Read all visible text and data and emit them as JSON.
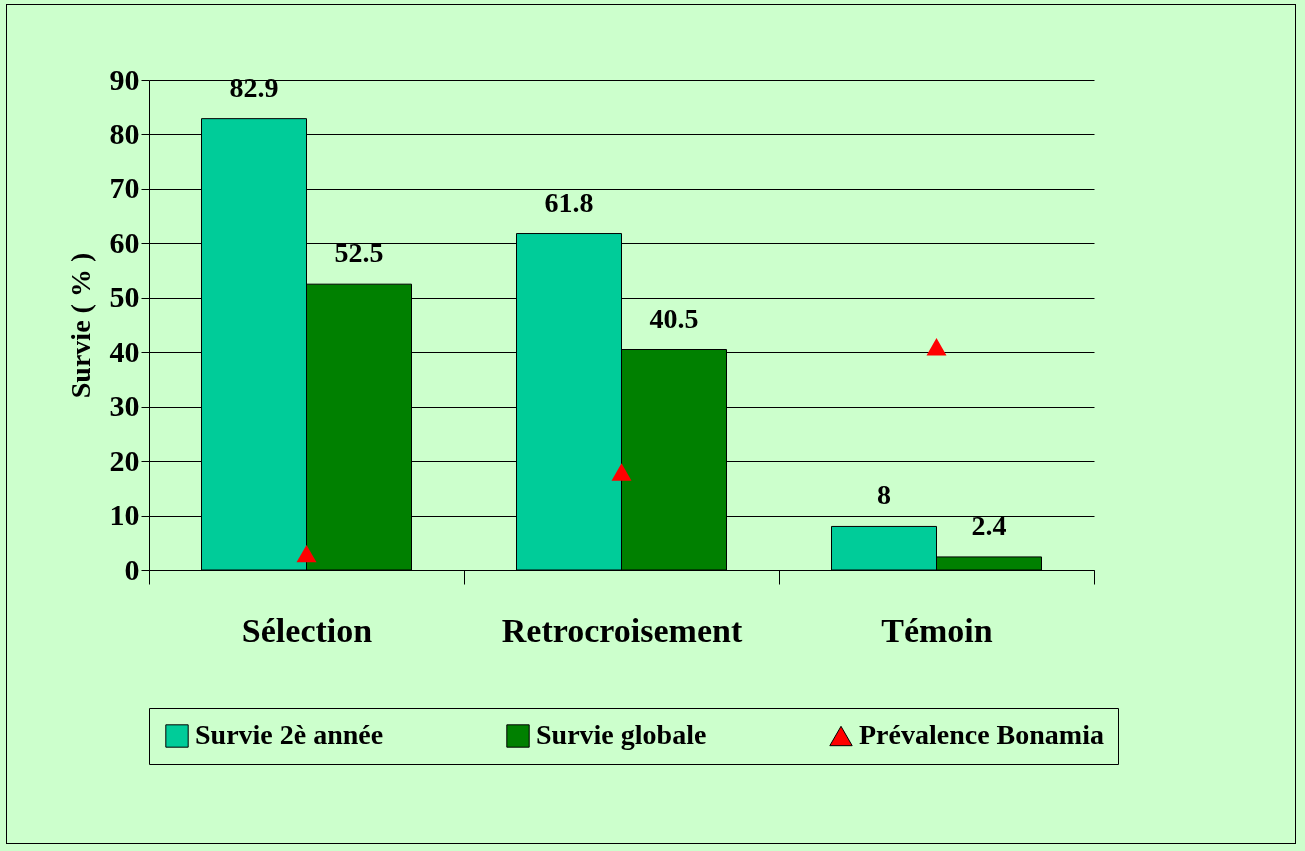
{
  "chart_data": {
    "type": "bar",
    "categories": [
      "Sélection",
      "Retrocroisement",
      "Témoin"
    ],
    "ylabel": "Survie ( % )",
    "ylim": [
      0,
      90
    ],
    "yticks": [
      0,
      10,
      20,
      30,
      40,
      50,
      60,
      70,
      80,
      90
    ],
    "grid": "y",
    "legend": "bottom",
    "series": [
      {
        "name": "Survie 2è année",
        "color": "#00cc99",
        "values": [
          82.9,
          61.8,
          8
        ],
        "value_labels": [
          "82.9",
          "61.8",
          "8"
        ]
      },
      {
        "name": "Survie globale",
        "color": "#008000",
        "values": [
          52.5,
          40.5,
          2.4
        ],
        "value_labels": [
          "52.5",
          "40.5",
          "2.4"
        ]
      },
      {
        "name": "Prévalence Bonamia",
        "type": "scatter",
        "marker": "triangle",
        "color": "#ff0000",
        "values": [
          3,
          18,
          41
        ]
      }
    ]
  }
}
